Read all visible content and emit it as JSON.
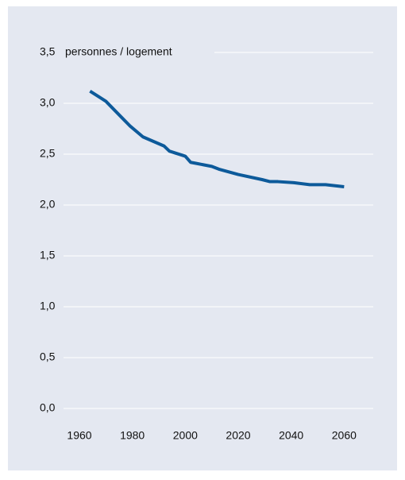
{
  "chart_data": {
    "type": "line",
    "y_label": "personnes / logement",
    "x": [
      1964,
      1970,
      1976,
      1979,
      1984,
      1992,
      1994,
      2000,
      2002,
      2004,
      2010,
      2013,
      2020,
      2029,
      2032,
      2035,
      2041,
      2047,
      2053,
      2060
    ],
    "series": [
      {
        "name": null,
        "color": "#0d5a9a",
        "values": [
          3.12,
          3.02,
          2.86,
          2.78,
          2.67,
          2.58,
          2.53,
          2.48,
          2.42,
          2.41,
          2.38,
          2.35,
          2.3,
          2.25,
          2.23,
          2.23,
          2.22,
          2.2,
          2.2,
          2.18
        ]
      }
    ],
    "xlim": [
      1954,
      2071
    ],
    "xticks": [
      1960,
      1980,
      2000,
      2020,
      2040,
      2060
    ],
    "ylim": [
      0,
      3.5
    ],
    "yticks": [
      {
        "value": 0,
        "label": "0,0"
      },
      {
        "value": 0.5,
        "label": "0,5"
      },
      {
        "value": 1,
        "label": "1,0"
      },
      {
        "value": 1.5,
        "label": "1,5"
      },
      {
        "value": 2,
        "label": "2,0"
      },
      {
        "value": 2.5,
        "label": "2,5"
      },
      {
        "value": 3,
        "label": "3,0"
      },
      {
        "value": 3.5,
        "label": "3,5"
      }
    ],
    "grid": true,
    "background": "#e4e8f1"
  }
}
